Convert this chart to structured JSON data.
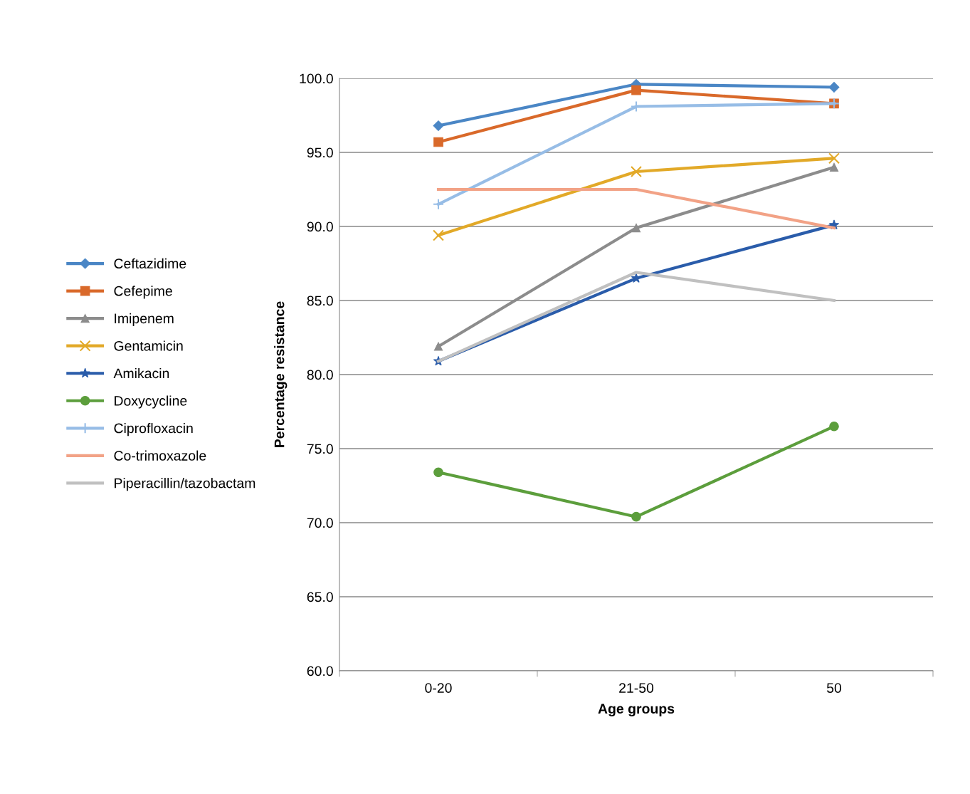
{
  "chart_data": {
    "type": "line",
    "xlabel": "Age groups",
    "ylabel": "Percentage resistance",
    "categories": [
      "0-20",
      "21-50",
      "50"
    ],
    "series": [
      {
        "name": "Ceftazidime",
        "color": "#4a86c5",
        "marker": "diamond",
        "values": [
          96.8,
          99.6,
          99.4
        ]
      },
      {
        "name": "Cefepime",
        "color": "#d9692a",
        "marker": "square",
        "values": [
          95.7,
          99.2,
          98.3
        ]
      },
      {
        "name": "Imipenem",
        "color": "#8c8c8c",
        "marker": "triangle",
        "values": [
          81.9,
          89.9,
          94.0
        ]
      },
      {
        "name": "Gentamicin",
        "color": "#e2a928",
        "marker": "cross",
        "values": [
          89.4,
          93.7,
          94.6
        ]
      },
      {
        "name": "Amikacin",
        "color": "#2a5caa",
        "marker": "star",
        "values": [
          80.9,
          86.5,
          90.1
        ]
      },
      {
        "name": "Doxycycline",
        "color": "#5c9e3c",
        "marker": "circle",
        "values": [
          73.4,
          70.4,
          76.5
        ]
      },
      {
        "name": "Ciprofloxacin",
        "color": "#97bde6",
        "marker": "plus",
        "values": [
          91.5,
          98.1,
          98.3
        ]
      },
      {
        "name": "Co-trimoxazole",
        "color": "#f2a286",
        "marker": "none",
        "values": [
          92.5,
          92.5,
          89.9
        ]
      },
      {
        "name": "Piperacillin/tazobactam",
        "color": "#c0c0c0",
        "marker": "none",
        "values": [
          80.9,
          86.9,
          85.0
        ]
      }
    ],
    "ylim": [
      60,
      100
    ],
    "yticks": [
      {
        "value": 60,
        "label": "60.0"
      },
      {
        "value": 65,
        "label": "65.0"
      },
      {
        "value": 70,
        "label": "70.0"
      },
      {
        "value": 75,
        "label": "75.0"
      },
      {
        "value": 80,
        "label": "80.0"
      },
      {
        "value": 85,
        "label": "85.0"
      },
      {
        "value": 90,
        "label": "90.0"
      },
      {
        "value": 95,
        "label": "95.0"
      },
      {
        "value": 100,
        "label": "100.0"
      }
    ],
    "grid": "y",
    "legend": "left",
    "line_style": "solid"
  }
}
